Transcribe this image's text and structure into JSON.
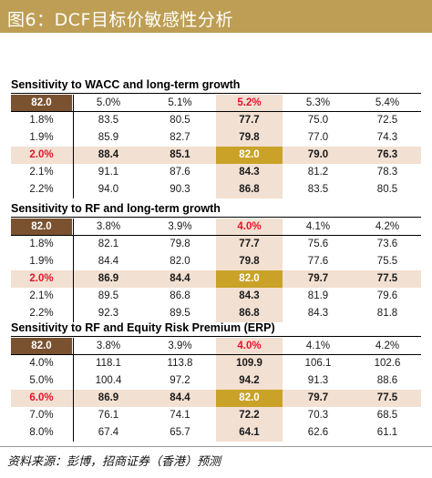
{
  "figure_title": "图6：DCF目标价敏感性分析",
  "source": "资料来源：彭博，招商证券（香港）预测",
  "colors": {
    "title_bar": "#bd9e54",
    "corner": "#7a5230",
    "center": "#c9a227",
    "highlight": "#f2e0d2",
    "red_text": "#e8132b"
  },
  "tables": [
    {
      "title": "Sensitivity to WACC and long-term growth",
      "corner": "82.0",
      "columns": [
        "5.0%",
        "5.1%",
        "5.2%",
        "5.3%",
        "5.4%"
      ],
      "rows": [
        {
          "label": "1.8%",
          "values": [
            "83.5",
            "80.5",
            "77.7",
            "75.0",
            "72.5"
          ]
        },
        {
          "label": "1.9%",
          "values": [
            "85.9",
            "82.7",
            "79.8",
            "77.0",
            "74.3"
          ]
        },
        {
          "label": "2.0%",
          "values": [
            "88.4",
            "85.1",
            "82.0",
            "79.0",
            "76.3"
          ]
        },
        {
          "label": "2.1%",
          "values": [
            "91.1",
            "87.6",
            "84.3",
            "81.2",
            "78.3"
          ]
        },
        {
          "label": "2.2%",
          "values": [
            "94.0",
            "90.3",
            "86.8",
            "83.5",
            "80.5"
          ]
        }
      ]
    },
    {
      "title": "Sensitivity to RF and long-term growth",
      "corner": "82.0",
      "columns": [
        "3.8%",
        "3.9%",
        "4.0%",
        "4.1%",
        "4.2%"
      ],
      "rows": [
        {
          "label": "1.8%",
          "values": [
            "82.1",
            "79.8",
            "77.7",
            "75.6",
            "73.6"
          ]
        },
        {
          "label": "1.9%",
          "values": [
            "84.4",
            "82.0",
            "79.8",
            "77.6",
            "75.5"
          ]
        },
        {
          "label": "2.0%",
          "values": [
            "86.9",
            "84.4",
            "82.0",
            "79.7",
            "77.5"
          ]
        },
        {
          "label": "2.1%",
          "values": [
            "89.5",
            "86.8",
            "84.3",
            "81.9",
            "79.6"
          ]
        },
        {
          "label": "2.2%",
          "values": [
            "92.3",
            "89.5",
            "86.8",
            "84.3",
            "81.8"
          ]
        }
      ]
    },
    {
      "title": "Sensitivity to RF and Equity Risk Premium (ERP)",
      "corner": "82.0",
      "columns": [
        "3.8%",
        "3.9%",
        "4.0%",
        "4.1%",
        "4.2%"
      ],
      "rows": [
        {
          "label": "4.0%",
          "values": [
            "118.1",
            "113.8",
            "109.9",
            "106.1",
            "102.6"
          ]
        },
        {
          "label": "5.0%",
          "values": [
            "100.4",
            "97.2",
            "94.2",
            "91.3",
            "88.6"
          ]
        },
        {
          "label": "6.0%",
          "values": [
            "86.9",
            "84.4",
            "82.0",
            "79.7",
            "77.5"
          ]
        },
        {
          "label": "7.0%",
          "values": [
            "76.1",
            "74.1",
            "72.2",
            "70.3",
            "68.5"
          ]
        },
        {
          "label": "8.0%",
          "values": [
            "67.4",
            "65.7",
            "64.1",
            "62.6",
            "61.1"
          ]
        }
      ]
    }
  ]
}
